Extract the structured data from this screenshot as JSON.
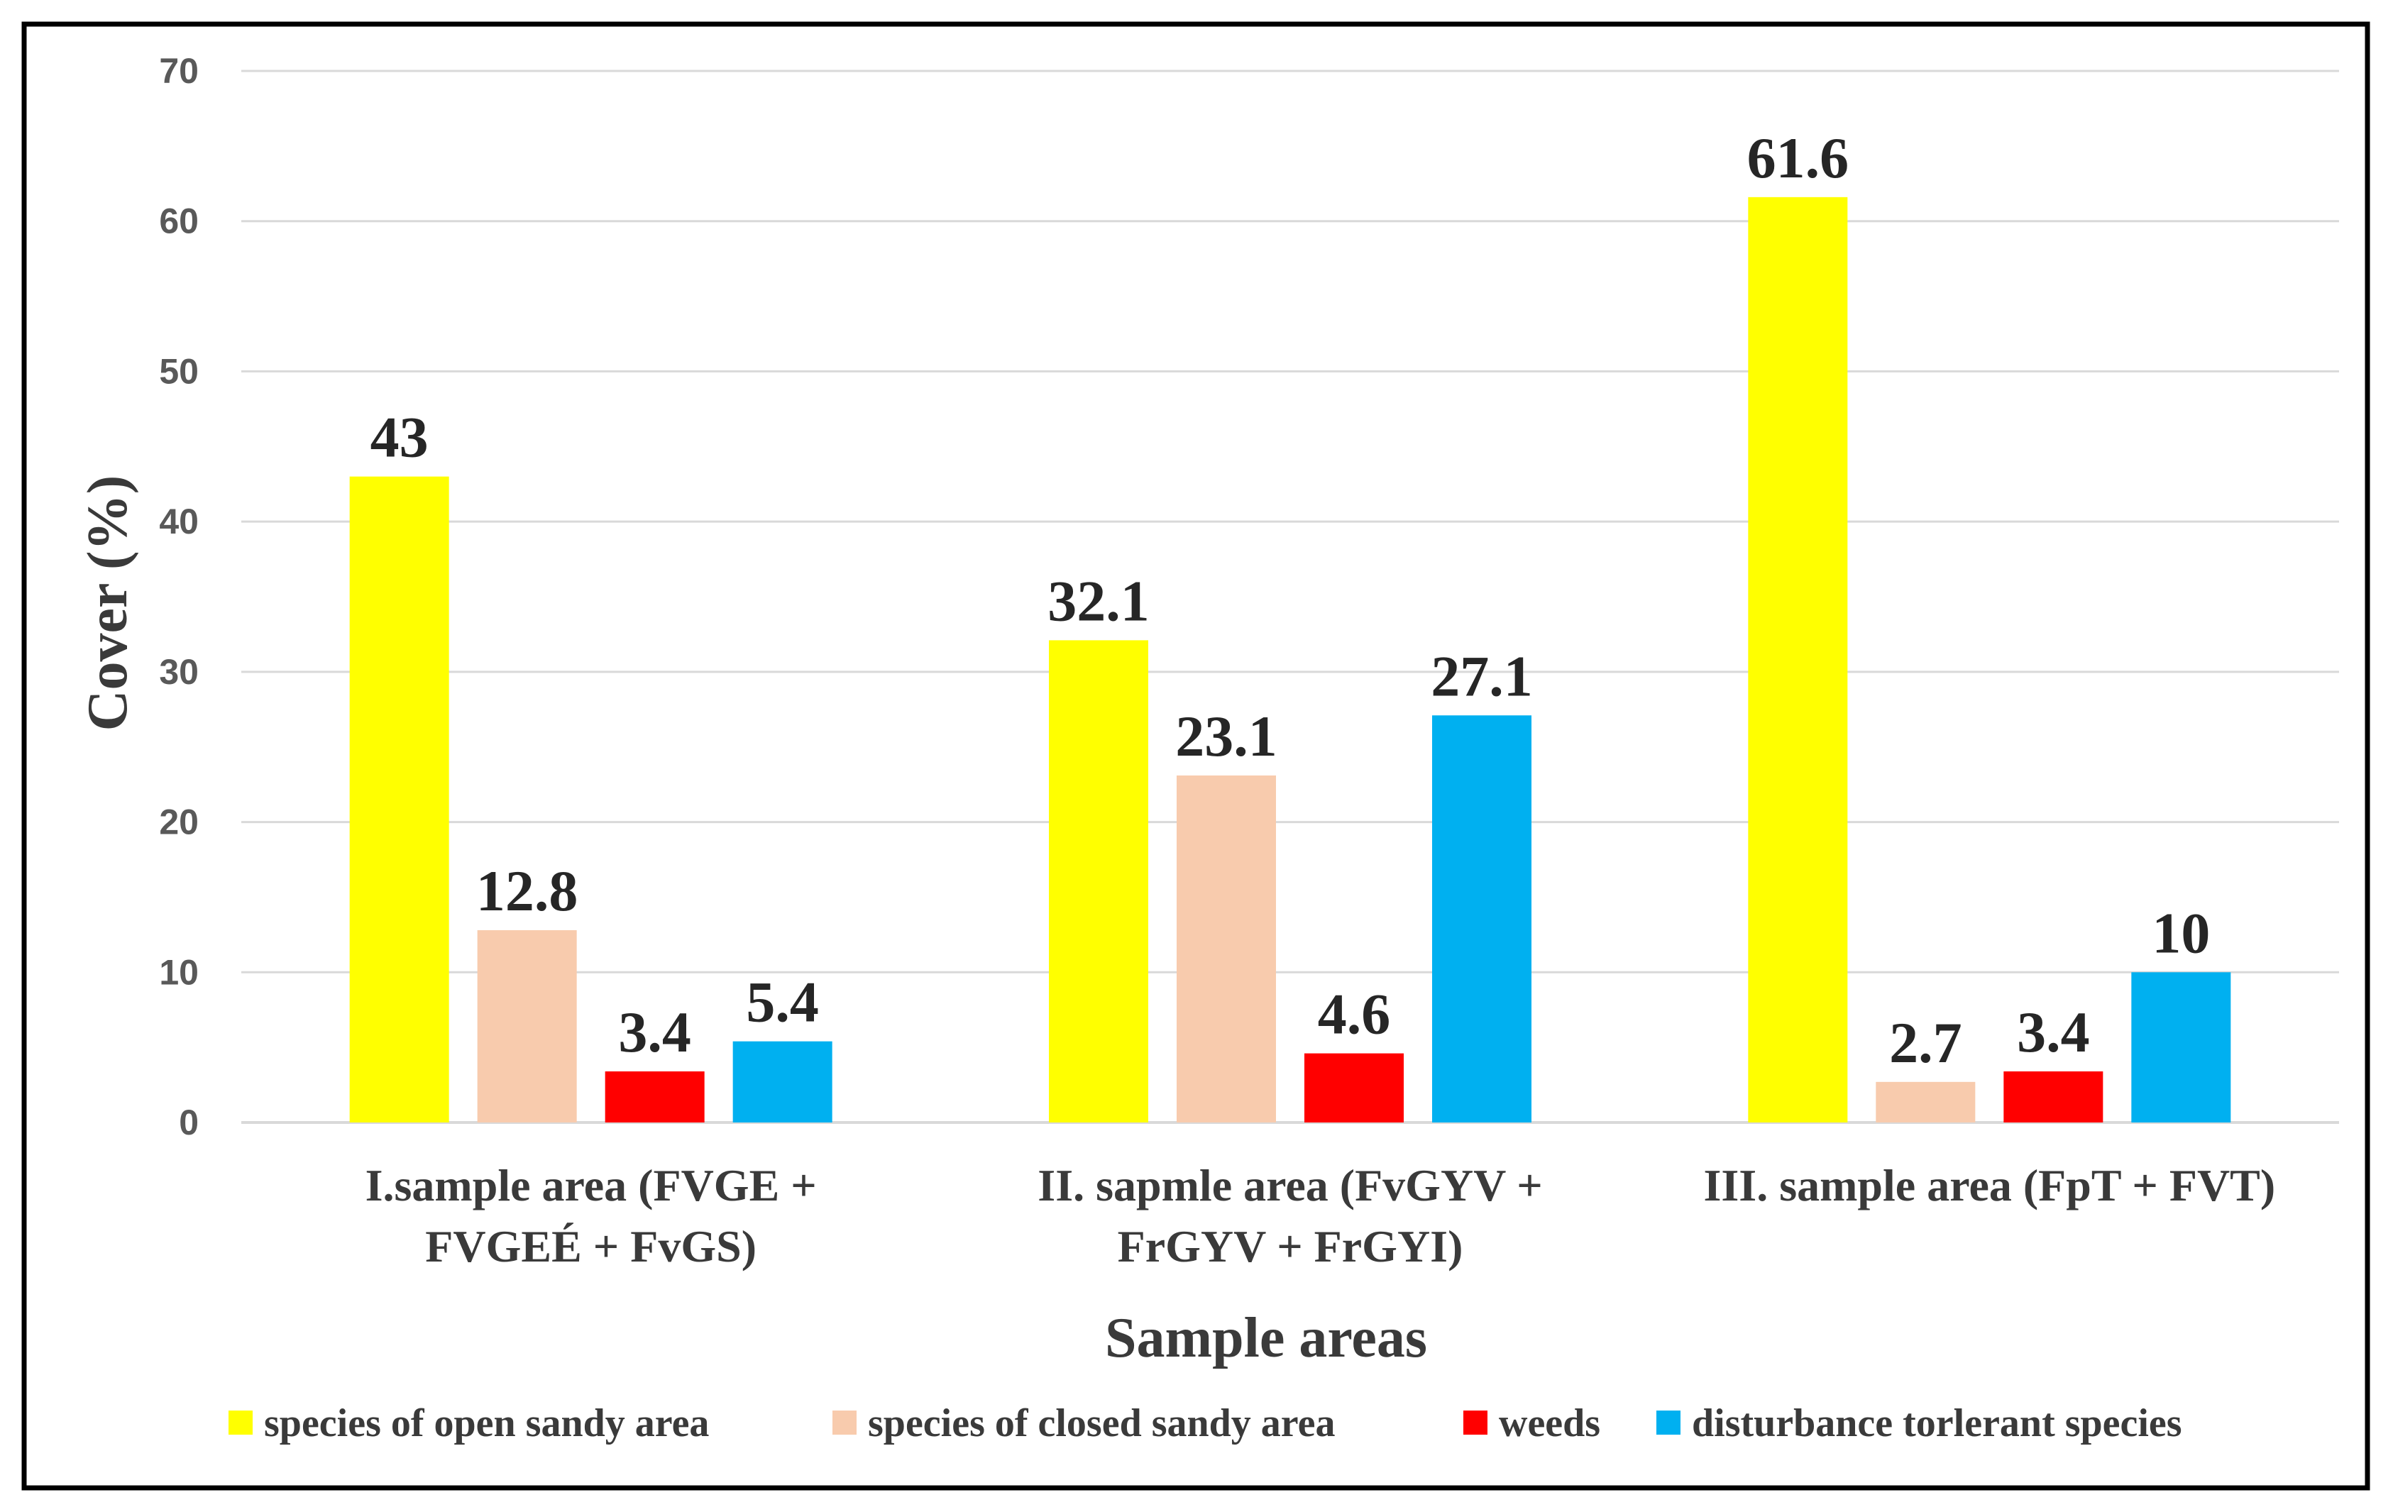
{
  "chart_data": {
    "type": "bar",
    "title": "",
    "xlabel": "Sample areas",
    "ylabel": "Cover  (%)",
    "ylim": [
      0,
      70
    ],
    "yticks": [
      0,
      10,
      20,
      30,
      40,
      50,
      60,
      70
    ],
    "grid": true,
    "legend_position": "bottom",
    "categories": [
      [
        "I.sample area (FVGE  +",
        "FVGEÉ + FvGS)"
      ],
      [
        "II. sapmle area (FvGYV +",
        "FrGYV + FrGYI)"
      ],
      [
        "III. sample area (FpT + FVT)"
      ]
    ],
    "series": [
      {
        "name": "species of open sandy area",
        "color": "#FFFF00",
        "values": [
          43,
          32.1,
          61.6
        ],
        "labels": [
          "43",
          "32.1",
          "61.6"
        ]
      },
      {
        "name": "species of closed sandy area",
        "color": "#F8CBAD",
        "values": [
          12.8,
          23.1,
          2.7
        ],
        "labels": [
          "12.8",
          "23.1",
          "2.7"
        ]
      },
      {
        "name": "weeds",
        "color": "#FF0000",
        "values": [
          3.4,
          4.6,
          3.4
        ],
        "labels": [
          "3.4",
          "4.6",
          "3.4"
        ]
      },
      {
        "name": "disturbance torlerant species",
        "color": "#00B0F0",
        "values": [
          5.4,
          27.1,
          10
        ],
        "labels": [
          "5.4",
          "27.1",
          "10"
        ]
      }
    ]
  }
}
